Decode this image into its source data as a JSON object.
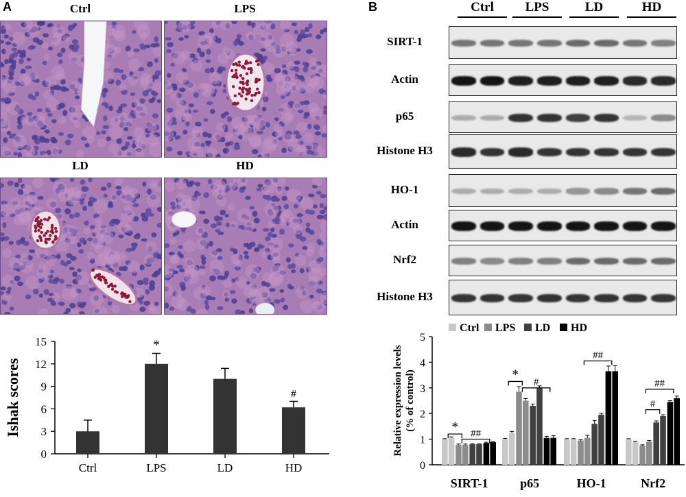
{
  "panel_a": {
    "letter": "A",
    "histology": [
      {
        "label": "Ctrl",
        "lesion": "vein"
      },
      {
        "label": "LPS",
        "lesion": "congestion"
      },
      {
        "label": "LD",
        "lesion": "congestion-two"
      },
      {
        "label": "HD",
        "lesion": "small-vein"
      }
    ]
  },
  "panel_b": {
    "letter": "B",
    "groups": [
      "Ctrl",
      "LPS",
      "LD",
      "HD"
    ],
    "blots": [
      {
        "label": "SIRT-1",
        "intensities": [
          0.55,
          0.55,
          0.55,
          0.55,
          0.6,
          0.6,
          0.55,
          0.5
        ]
      },
      {
        "label": "Actin",
        "intensities": [
          1,
          1,
          0.95,
          0.95,
          0.95,
          0.95,
          0.9,
          0.9
        ]
      },
      {
        "label": "p65",
        "intensities": [
          0.3,
          0.3,
          0.85,
          0.85,
          0.8,
          0.85,
          0.25,
          0.45
        ]
      },
      {
        "label": "Histone H3",
        "intensities": [
          0.9,
          0.85,
          0.9,
          0.85,
          0.85,
          0.85,
          0.85,
          0.85
        ]
      },
      {
        "label": "HO-1",
        "intensities": [
          0.3,
          0.3,
          0.3,
          0.3,
          0.4,
          0.45,
          0.55,
          0.6
        ]
      },
      {
        "label": "Actin",
        "intensities": [
          1,
          1,
          1,
          1,
          1,
          1,
          1,
          1
        ]
      },
      {
        "label": "Nrf2",
        "intensities": [
          0.5,
          0.45,
          0.5,
          0.5,
          0.6,
          0.6,
          0.6,
          0.6
        ]
      },
      {
        "label": "Histone H3",
        "intensities": [
          0.85,
          0.85,
          0.85,
          0.85,
          0.85,
          0.85,
          0.85,
          0.85
        ]
      }
    ]
  },
  "chart_data": [
    {
      "type": "bar",
      "title": "",
      "xlabel": "",
      "ylabel": "Ishak scores",
      "categories": [
        "Ctrl",
        "LPS",
        "LD",
        "HD"
      ],
      "values": [
        3.0,
        12.0,
        10.0,
        6.2
      ],
      "errors": [
        1.5,
        1.4,
        1.4,
        0.8
      ],
      "annotations": [
        "",
        "*",
        "",
        "#"
      ],
      "yticks": [
        0,
        3,
        6,
        9,
        12,
        15
      ],
      "ylim": [
        0,
        15
      ],
      "bar_color": "#333333"
    },
    {
      "type": "bar",
      "title": "",
      "ylabel": "Relative expression levels\n(% of control)",
      "ylabel_lines": [
        "Relative expression levels",
        "(% of control)"
      ],
      "categories": [
        "SIRT-1",
        "p65",
        "HO-1",
        "Nrf2"
      ],
      "legend": {
        "placement": "top",
        "entries": [
          "Ctrl",
          "LPS",
          "LD",
          "HD"
        ]
      },
      "series_colors": [
        "#c8c8c8",
        "#8c8c8c",
        "#404040",
        "#000000"
      ],
      "replicates_per_series": 2,
      "yticks": [
        0,
        1,
        2,
        3,
        4,
        5
      ],
      "ylim": [
        0,
        5
      ],
      "series": [
        {
          "name": "Ctrl",
          "values": [
            [
              1.0,
              1.05
            ],
            [
              1.0,
              1.25
            ],
            [
              1.0,
              1.0
            ],
            [
              1.0,
              0.9
            ]
          ],
          "errors": [
            [
              0.02,
              0.04
            ],
            [
              0.03,
              0.05
            ],
            [
              0.02,
              0.02
            ],
            [
              0.02,
              0.02
            ]
          ]
        },
        {
          "name": "LPS",
          "values": [
            [
              0.78,
              0.78
            ],
            [
              2.85,
              2.5
            ],
            [
              0.95,
              1.05
            ],
            [
              0.75,
              0.9
            ]
          ],
          "errors": [
            [
              0.03,
              0.03
            ],
            [
              0.2,
              0.08
            ],
            [
              0.03,
              0.1
            ],
            [
              0.03,
              0.05
            ]
          ]
        },
        {
          "name": "LD",
          "values": [
            [
              0.8,
              0.8
            ],
            [
              2.3,
              2.98
            ],
            [
              1.6,
              1.95
            ],
            [
              1.65,
              1.9
            ]
          ],
          "errors": [
            [
              0.02,
              0.02
            ],
            [
              0.07,
              0.1
            ],
            [
              0.12,
              0.05
            ],
            [
              0.06,
              0.05
            ]
          ]
        },
        {
          "name": "HD",
          "values": [
            [
              0.85,
              0.88
            ],
            [
              1.05,
              1.05
            ],
            [
              3.65,
              3.65
            ],
            [
              2.45,
              2.6
            ]
          ],
          "errors": [
            [
              0.03,
              0.03
            ],
            [
              0.06,
              0.08
            ],
            [
              0.2,
              0.22
            ],
            [
              0.05,
              0.08
            ]
          ]
        }
      ],
      "annotations": [
        {
          "category": "SIRT-1",
          "label": "*"
        },
        {
          "category": "SIRT-1",
          "label": "##"
        },
        {
          "category": "p65",
          "label": "*"
        },
        {
          "category": "p65",
          "label": "#"
        },
        {
          "category": "HO-1",
          "label": "##"
        },
        {
          "category": "Nrf2",
          "label": "#"
        },
        {
          "category": "Nrf2",
          "label": "##"
        }
      ]
    }
  ]
}
